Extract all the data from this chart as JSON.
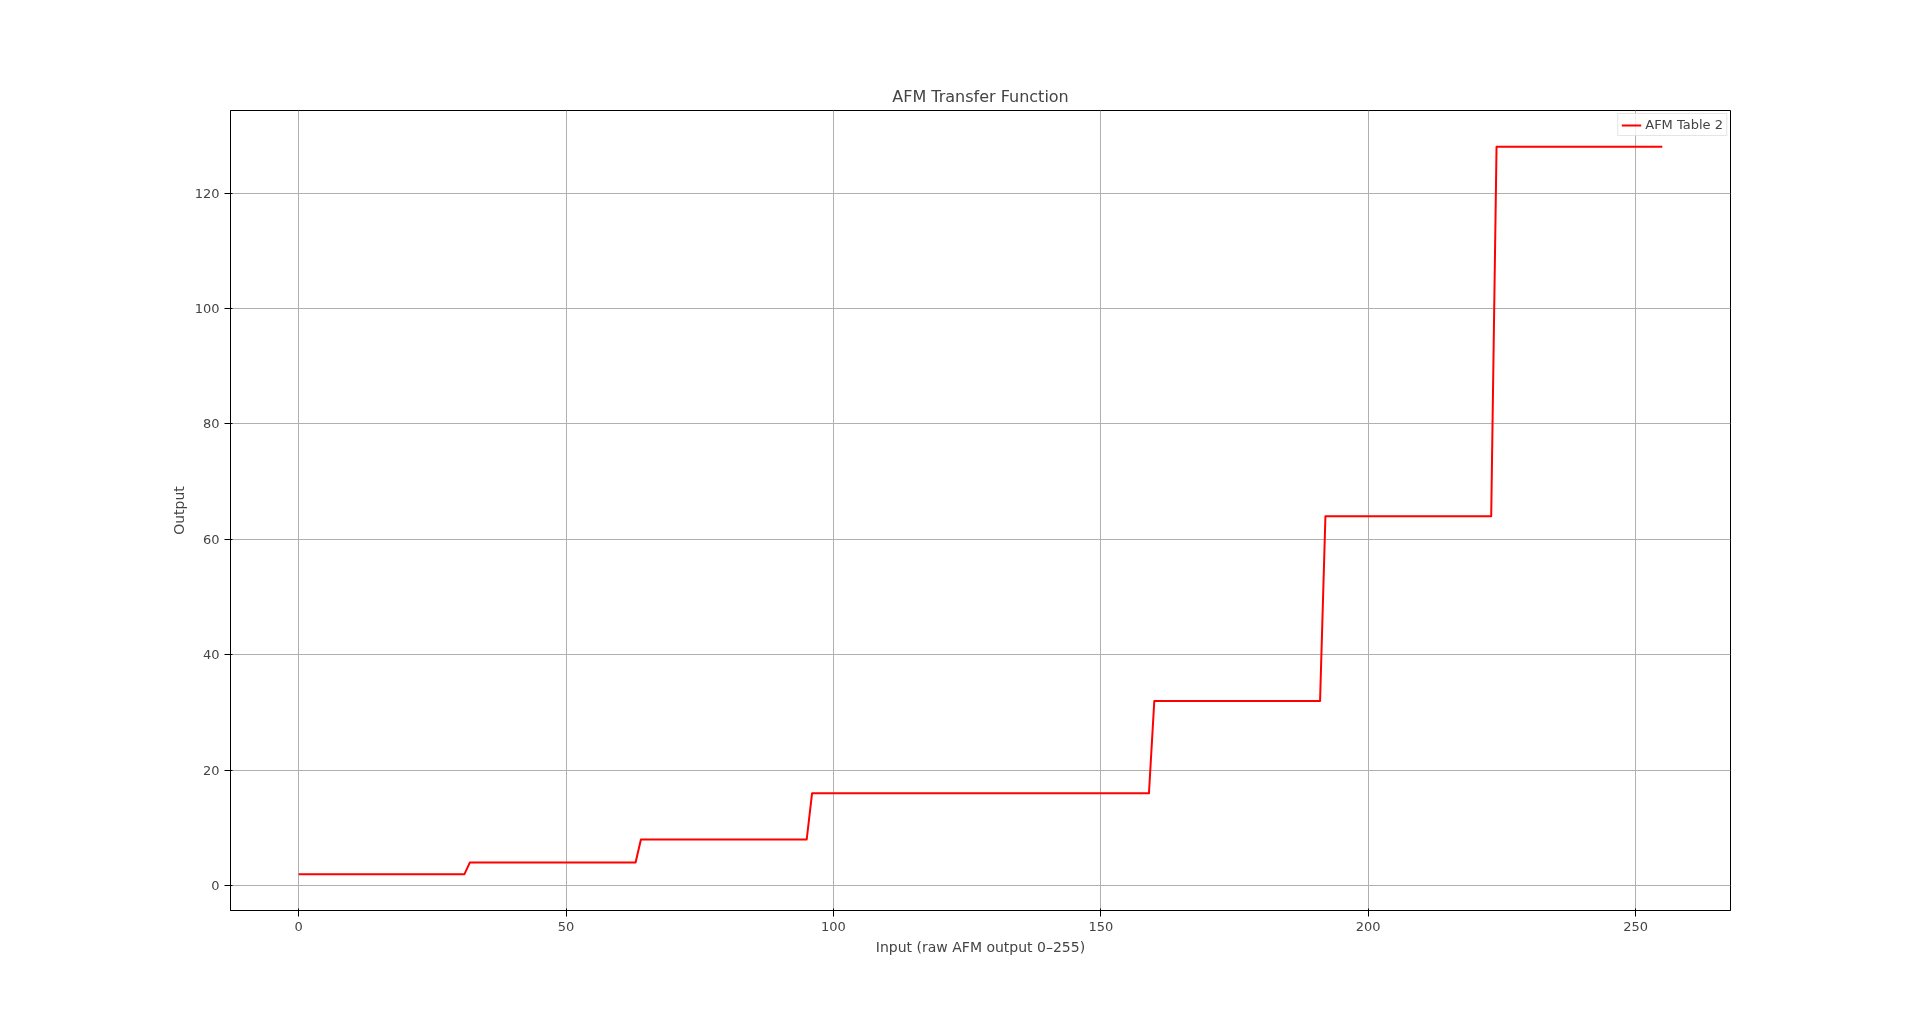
{
  "chart_data": {
    "type": "line",
    "title": "AFM Transfer Function",
    "xlabel": "Input (raw AFM output 0–255)",
    "ylabel": "Output",
    "x": [
      0,
      31,
      32,
      63,
      64,
      95,
      96,
      159,
      160,
      191,
      192,
      223,
      224,
      255
    ],
    "series": [
      {
        "name": "AFM Table 2",
        "color": "#ff0000",
        "values": [
          2,
          2,
          4,
          4,
          8,
          8,
          16,
          16,
          32,
          32,
          64,
          64,
          128,
          128
        ]
      }
    ],
    "xlim": [
      -12.75,
      267.75
    ],
    "ylim": [
      -4.3,
      134.3
    ],
    "xticks": [
      0,
      50,
      100,
      150,
      200,
      250
    ],
    "yticks": [
      0,
      20,
      40,
      60,
      80,
      100,
      120
    ],
    "grid": true,
    "legend": "top right"
  }
}
